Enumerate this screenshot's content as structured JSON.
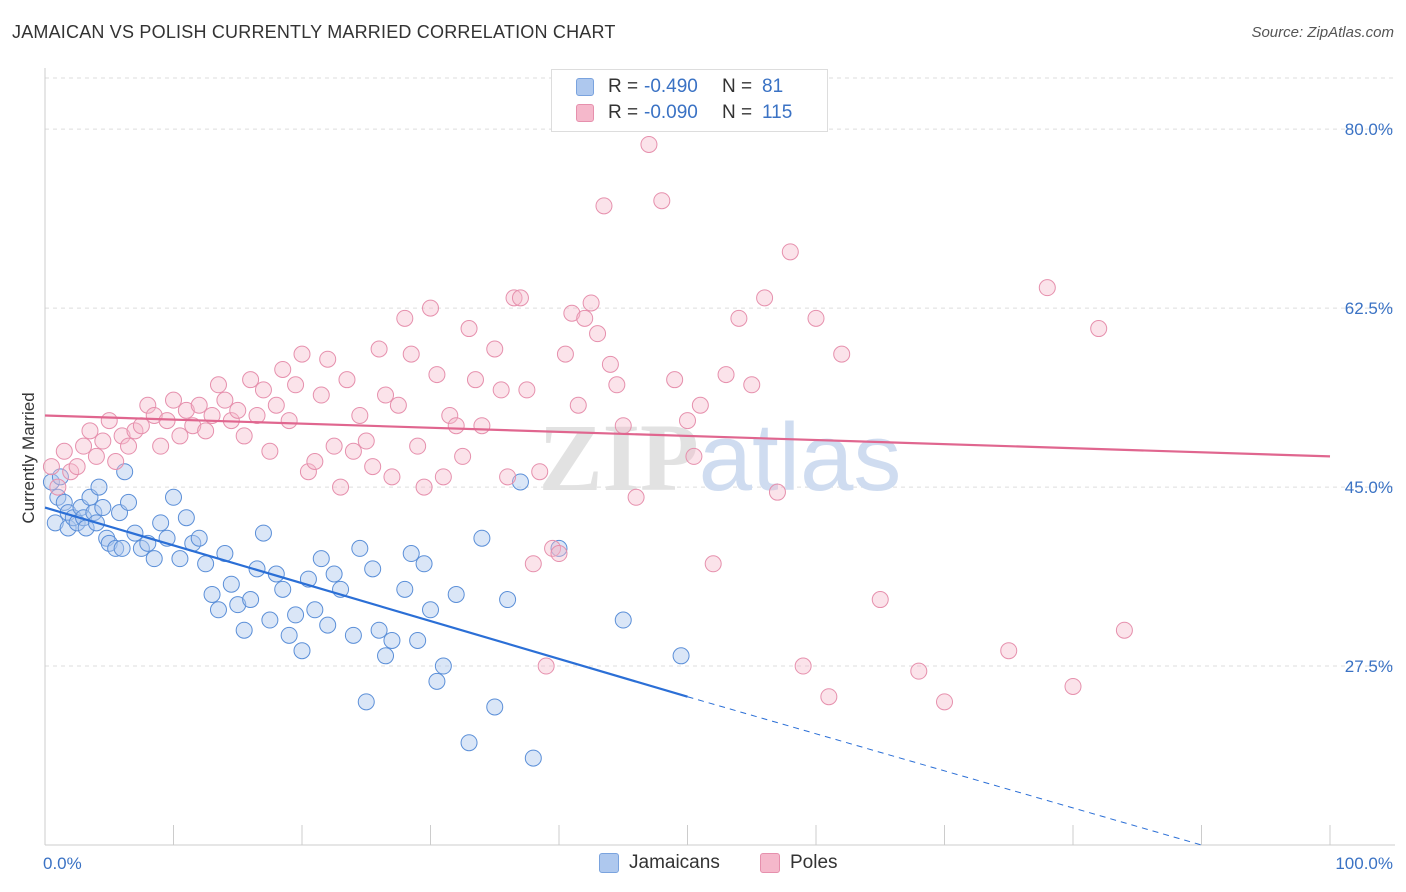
{
  "title": "JAMAICAN VS POLISH CURRENTLY MARRIED CORRELATION CHART",
  "source": "Source: ZipAtlas.com",
  "watermark": "ZIPatlas",
  "colors": {
    "blue": "#3a72c4",
    "blue_fill": "#aec8ee",
    "blue_line": "#2b6fd6",
    "pink": "#e07a9b",
    "pink_fill": "#f5b8cb",
    "pink_line": "#e0668f"
  },
  "legend": {
    "rows": [
      {
        "r_label": "R =",
        "r_value": "-0.490",
        "n_label": "N =",
        "n_value": "81"
      },
      {
        "r_label": "R =",
        "r_value": "-0.090",
        "n_label": "N =",
        "n_value": "115"
      }
    ]
  },
  "bottom_legend": {
    "items": [
      "Jamaicans",
      "Poles"
    ]
  },
  "chart_data": {
    "type": "scatter",
    "ylabel": "Currently Married",
    "xlabel": "",
    "xlim": [
      0,
      100
    ],
    "ylim": [
      10,
      85
    ],
    "x_tick_labels": [
      "0.0%",
      "100.0%"
    ],
    "y_ticks": [
      27.5,
      45.0,
      62.5,
      80.0
    ],
    "y_tick_labels": [
      "27.5%",
      "45.0%",
      "62.5%",
      "80.0%"
    ],
    "grid": true,
    "legend_position": "top-center",
    "series": [
      {
        "name": "Jamaicans",
        "color": "#aec8ee",
        "trend": {
          "x0": 0,
          "y0": 43.0,
          "x1": 50,
          "y1": 24.5,
          "dash_to": 90,
          "dash_y": 10.0
        },
        "points": [
          [
            0.5,
            45.5
          ],
          [
            0.8,
            41.5
          ],
          [
            1.0,
            44.0
          ],
          [
            1.2,
            46.0
          ],
          [
            1.5,
            43.5
          ],
          [
            1.8,
            42.5
          ],
          [
            1.8,
            41.0
          ],
          [
            2.2,
            42.0
          ],
          [
            2.5,
            41.5
          ],
          [
            2.8,
            43.0
          ],
          [
            3.0,
            42.0
          ],
          [
            3.2,
            41.0
          ],
          [
            3.5,
            44.0
          ],
          [
            3.8,
            42.5
          ],
          [
            4.0,
            41.5
          ],
          [
            4.2,
            45.0
          ],
          [
            4.5,
            43.0
          ],
          [
            4.8,
            40.0
          ],
          [
            5.0,
            39.5
          ],
          [
            5.5,
            39.0
          ],
          [
            5.8,
            42.5
          ],
          [
            6.0,
            39.0
          ],
          [
            6.2,
            46.5
          ],
          [
            6.5,
            43.5
          ],
          [
            7.0,
            40.5
          ],
          [
            7.5,
            39.0
          ],
          [
            8.0,
            39.5
          ],
          [
            8.5,
            38.0
          ],
          [
            9.0,
            41.5
          ],
          [
            9.5,
            40.0
          ],
          [
            10.0,
            44.0
          ],
          [
            10.5,
            38.0
          ],
          [
            11.0,
            42.0
          ],
          [
            11.5,
            39.5
          ],
          [
            12.0,
            40.0
          ],
          [
            12.5,
            37.5
          ],
          [
            13.0,
            34.5
          ],
          [
            13.5,
            33.0
          ],
          [
            14.0,
            38.5
          ],
          [
            14.5,
            35.5
          ],
          [
            15.0,
            33.5
          ],
          [
            15.5,
            31.0
          ],
          [
            16.0,
            34.0
          ],
          [
            16.5,
            37.0
          ],
          [
            17.0,
            40.5
          ],
          [
            17.5,
            32.0
          ],
          [
            18.0,
            36.5
          ],
          [
            18.5,
            35.0
          ],
          [
            19.0,
            30.5
          ],
          [
            19.5,
            32.5
          ],
          [
            20.0,
            29.0
          ],
          [
            20.5,
            36.0
          ],
          [
            21.0,
            33.0
          ],
          [
            21.5,
            38.0
          ],
          [
            22.0,
            31.5
          ],
          [
            22.5,
            36.5
          ],
          [
            23.0,
            35.0
          ],
          [
            24.0,
            30.5
          ],
          [
            24.5,
            39.0
          ],
          [
            25.0,
            24.0
          ],
          [
            25.5,
            37.0
          ],
          [
            26.0,
            31.0
          ],
          [
            26.5,
            28.5
          ],
          [
            27.0,
            30.0
          ],
          [
            28.0,
            35.0
          ],
          [
            28.5,
            38.5
          ],
          [
            29.0,
            30.0
          ],
          [
            29.5,
            37.5
          ],
          [
            30.0,
            33.0
          ],
          [
            30.5,
            26.0
          ],
          [
            31.0,
            27.5
          ],
          [
            32.0,
            34.5
          ],
          [
            33.0,
            20.0
          ],
          [
            34.0,
            40.0
          ],
          [
            35.0,
            23.5
          ],
          [
            36.0,
            34.0
          ],
          [
            37.0,
            45.5
          ],
          [
            38.0,
            18.5
          ],
          [
            40.0,
            39.0
          ],
          [
            45.0,
            32.0
          ],
          [
            49.5,
            28.5
          ]
        ]
      },
      {
        "name": "Poles",
        "color": "#f5b8cb",
        "trend": {
          "x0": 0,
          "y0": 52.0,
          "x1": 100,
          "y1": 48.0
        },
        "points": [
          [
            0.5,
            47.0
          ],
          [
            1.0,
            45.0
          ],
          [
            1.5,
            48.5
          ],
          [
            2.0,
            46.5
          ],
          [
            2.5,
            47.0
          ],
          [
            3.0,
            49.0
          ],
          [
            3.5,
            50.5
          ],
          [
            4.0,
            48.0
          ],
          [
            4.5,
            49.5
          ],
          [
            5.0,
            51.5
          ],
          [
            5.5,
            47.5
          ],
          [
            6.0,
            50.0
          ],
          [
            6.5,
            49.0
          ],
          [
            7.0,
            50.5
          ],
          [
            7.5,
            51.0
          ],
          [
            8.0,
            53.0
          ],
          [
            8.5,
            52.0
          ],
          [
            9.0,
            49.0
          ],
          [
            9.5,
            51.5
          ],
          [
            10.0,
            53.5
          ],
          [
            10.5,
            50.0
          ],
          [
            11.0,
            52.5
          ],
          [
            11.5,
            51.0
          ],
          [
            12.0,
            53.0
          ],
          [
            12.5,
            50.5
          ],
          [
            13.0,
            52.0
          ],
          [
            13.5,
            55.0
          ],
          [
            14.0,
            53.5
          ],
          [
            14.5,
            51.5
          ],
          [
            15.0,
            52.5
          ],
          [
            15.5,
            50.0
          ],
          [
            16.0,
            55.5
          ],
          [
            16.5,
            52.0
          ],
          [
            17.0,
            54.5
          ],
          [
            17.5,
            48.5
          ],
          [
            18.0,
            53.0
          ],
          [
            18.5,
            56.5
          ],
          [
            19.0,
            51.5
          ],
          [
            19.5,
            55.0
          ],
          [
            20.0,
            58.0
          ],
          [
            20.5,
            46.5
          ],
          [
            21.0,
            47.5
          ],
          [
            21.5,
            54.0
          ],
          [
            22.0,
            57.5
          ],
          [
            22.5,
            49.0
          ],
          [
            23.0,
            45.0
          ],
          [
            23.5,
            55.5
          ],
          [
            24.0,
            48.5
          ],
          [
            24.5,
            52.0
          ],
          [
            25.0,
            49.5
          ],
          [
            25.5,
            47.0
          ],
          [
            26.0,
            58.5
          ],
          [
            26.5,
            54.0
          ],
          [
            27.0,
            46.0
          ],
          [
            27.5,
            53.0
          ],
          [
            28.0,
            61.5
          ],
          [
            28.5,
            58.0
          ],
          [
            29.0,
            49.0
          ],
          [
            29.5,
            45.0
          ],
          [
            30.0,
            62.5
          ],
          [
            30.5,
            56.0
          ],
          [
            31.0,
            46.0
          ],
          [
            31.5,
            52.0
          ],
          [
            32.0,
            51.0
          ],
          [
            32.5,
            48.0
          ],
          [
            33.0,
            60.5
          ],
          [
            33.5,
            55.5
          ],
          [
            34.0,
            51.0
          ],
          [
            35.0,
            58.5
          ],
          [
            35.5,
            54.5
          ],
          [
            36.0,
            46.0
          ],
          [
            36.5,
            63.5
          ],
          [
            37.0,
            63.5
          ],
          [
            37.5,
            54.5
          ],
          [
            38.0,
            37.5
          ],
          [
            38.5,
            46.5
          ],
          [
            39.0,
            27.5
          ],
          [
            39.5,
            39.0
          ],
          [
            40.0,
            38.5
          ],
          [
            40.5,
            58.0
          ],
          [
            41.0,
            62.0
          ],
          [
            41.5,
            53.0
          ],
          [
            42.0,
            61.5
          ],
          [
            42.5,
            63.0
          ],
          [
            43.0,
            60.0
          ],
          [
            43.5,
            72.5
          ],
          [
            44.0,
            57.0
          ],
          [
            44.5,
            55.0
          ],
          [
            45.0,
            51.0
          ],
          [
            46.0,
            44.0
          ],
          [
            47.0,
            78.5
          ],
          [
            48.0,
            73.0
          ],
          [
            49.0,
            55.5
          ],
          [
            50.0,
            51.5
          ],
          [
            50.5,
            48.0
          ],
          [
            51.0,
            53.0
          ],
          [
            52.0,
            37.5
          ],
          [
            53.0,
            56.0
          ],
          [
            54.0,
            61.5
          ],
          [
            55.0,
            55.0
          ],
          [
            56.0,
            63.5
          ],
          [
            57.0,
            44.5
          ],
          [
            58.0,
            68.0
          ],
          [
            59.0,
            27.5
          ],
          [
            60.0,
            61.5
          ],
          [
            61.0,
            24.5
          ],
          [
            62.0,
            58.0
          ],
          [
            65.0,
            34.0
          ],
          [
            68.0,
            27.0
          ],
          [
            70.0,
            24.0
          ],
          [
            75.0,
            29.0
          ],
          [
            78.0,
            64.5
          ],
          [
            80.0,
            25.5
          ],
          [
            82.0,
            60.5
          ],
          [
            84.0,
            31.0
          ]
        ]
      }
    ]
  }
}
